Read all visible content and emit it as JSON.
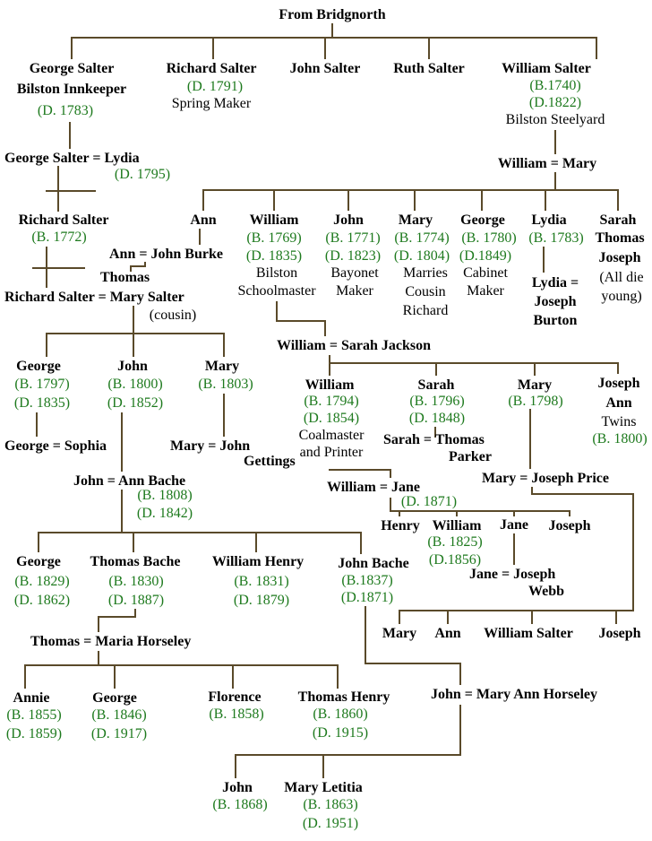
{
  "root": {
    "title": "From Bridgnorth"
  },
  "gen1": {
    "george": {
      "name": "George Salter",
      "note": "Bilston Innkeeper",
      "died": "(D. 1783)"
    },
    "richard": {
      "name": "Richard Salter",
      "died": "(D. 1791)",
      "note": "Spring Maker"
    },
    "john": {
      "name": "John Salter"
    },
    "ruth": {
      "name": "Ruth Salter"
    },
    "william": {
      "name": "William Salter",
      "born": "(B.1740)",
      "died": "(D.1822)",
      "note": "Bilston Steelyard"
    }
  },
  "george_line": {
    "couple": "George Salter = Lydia",
    "lydia_died": "(D. 1795)",
    "richard_name": "Richard Salter",
    "richard_born": "(B. 1772)",
    "ann_couple": "Ann = John Burke",
    "thomas": "Thomas",
    "richard_couple": "Richard Salter = Mary Salter",
    "cousin": "(cousin)"
  },
  "william_mary": {
    "couple": "William = Mary",
    "ann": "Ann",
    "william": {
      "name": "William",
      "born": "(B. 1769)",
      "died": "(D. 1835)",
      "note1": "Bilston",
      "note2": "Schoolmaster"
    },
    "john": {
      "name": "John",
      "born": "(B. 1771)",
      "died": "(D. 1823)",
      "note1": "Bayonet",
      "note2": "Maker"
    },
    "mary": {
      "name": "Mary",
      "born": "(B. 1774)",
      "died": "(D. 1804)",
      "note1": "Marries",
      "note2": "Cousin",
      "note3": "Richard"
    },
    "george": {
      "name": "George",
      "born": "(B. 1780)",
      "died": "(D.1849)",
      "note1": "Cabinet",
      "note2": "Maker"
    },
    "lydia": {
      "name": "Lydia",
      "born": "(B. 1783)",
      "spouse1": "Lydia =",
      "spouse2": "Joseph",
      "spouse3": "Burton"
    },
    "young": {
      "n1": "Sarah",
      "n2": "Thomas",
      "n3": "Joseph",
      "note1": "(All die",
      "note2": "young)"
    }
  },
  "richard_mary": {
    "george": {
      "name": "George",
      "born": "(B. 1797)",
      "died": "(D. 1835)",
      "couple": "George = Sophia"
    },
    "john": {
      "name": "John",
      "born": "(B. 1800)",
      "died": "(D. 1852)"
    },
    "mary": {
      "name": "Mary",
      "born": "(B. 1803)",
      "couple1": "Mary = John",
      "couple2": "Gettings"
    }
  },
  "john_ann": {
    "couple": "John = Ann Bache",
    "born": "(B. 1808)",
    "died": "(D. 1842)",
    "george": {
      "name": "George",
      "born": "(B. 1829)",
      "died": "(D. 1862)"
    },
    "thomas": {
      "name": "Thomas Bache",
      "born": "(B. 1830)",
      "died": "(D. 1887)"
    },
    "william": {
      "name": "William Henry",
      "born": "(B. 1831)",
      "died": "(D. 1879)"
    },
    "johnb": {
      "name": "John Bache",
      "born": "(B.1837)",
      "died": "(D.1871)"
    }
  },
  "thomas_maria": {
    "couple": "Thomas = Maria Horseley",
    "annie": {
      "name": "Annie",
      "born": "(B. 1855)",
      "died": "(D. 1859)"
    },
    "george": {
      "name": "George",
      "born": "(B. 1846)",
      "died": "(D. 1917)"
    },
    "florence": {
      "name": "Florence",
      "born": "(B. 1858)"
    },
    "thomash": {
      "name": "Thomas Henry",
      "born": "(B. 1860)",
      "died": "(D. 1915)"
    }
  },
  "john_maryann": {
    "couple": "John = Mary Ann Horseley",
    "john": {
      "name": "John",
      "born": "(B. 1868)"
    },
    "maryl": {
      "name": "Mary Letitia",
      "born": "(B. 1863)",
      "died": "(D. 1951)"
    }
  },
  "william_sarah": {
    "couple": "William = Sarah Jackson",
    "william": {
      "name": "William",
      "born": "(B. 1794)",
      "died": "(D. 1854)",
      "note1": "Coalmaster",
      "note2": "and Printer"
    },
    "sarah": {
      "name": "Sarah",
      "born": "(B. 1796)",
      "died": "(D. 1848)",
      "couple1": "Sarah = Thomas",
      "couple2": "Parker"
    },
    "mary": {
      "name": "Mary",
      "born": "(B. 1798)"
    },
    "twins": {
      "n1": "Joseph",
      "n2": "Ann",
      "note": "Twins",
      "born": "(B. 1800)"
    }
  },
  "william_jane": {
    "couple": "William = Jane",
    "died": "(D. 1871)",
    "henry": "Henry",
    "william": {
      "name": "William",
      "born": "(B. 1825)",
      "died": "(D.1856)"
    },
    "jane": {
      "name": "Jane",
      "couple1": "Jane = Joseph",
      "couple2": "Webb"
    },
    "joseph": "Joseph"
  },
  "mary_joseph": {
    "couple": "Mary = Joseph Price",
    "c1": "Mary",
    "c2": "Ann",
    "c3": "William Salter",
    "c4": "Joseph"
  },
  "colors": {
    "line": "#5a4a2a",
    "green": "#1e7a1e",
    "text": "#000000"
  }
}
